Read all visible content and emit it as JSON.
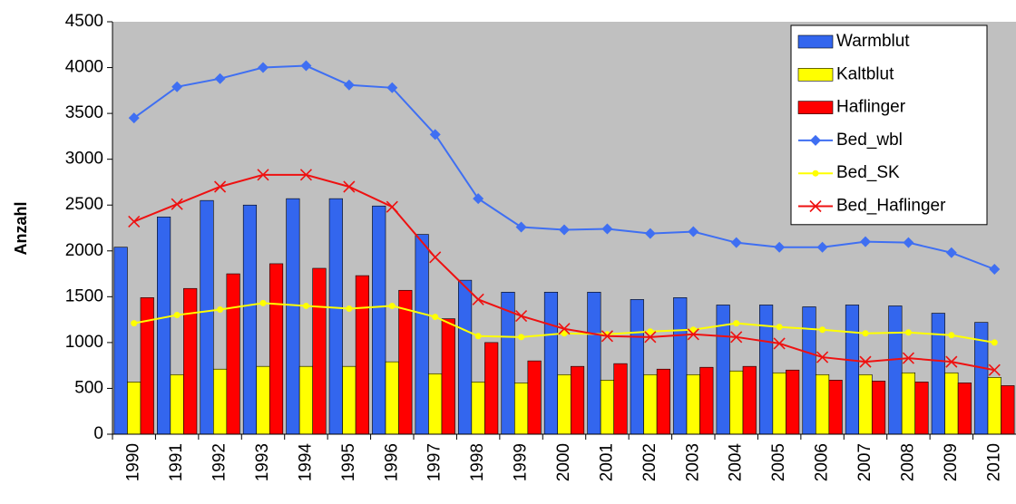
{
  "chart_data": {
    "type": "bar-line",
    "y_label": "Anzahl",
    "categories": [
      "1990",
      "1991",
      "1992",
      "1993",
      "1994",
      "1995",
      "1996",
      "1997",
      "1998",
      "1999",
      "2000",
      "2001",
      "2002",
      "2003",
      "2004",
      "2005",
      "2006",
      "2007",
      "2008",
      "2009",
      "2010"
    ],
    "series": [
      {
        "name": "Warmblut",
        "type": "bar",
        "color": "#3366ee",
        "values": [
          2040,
          2370,
          2550,
          2500,
          2570,
          2570,
          2490,
          2180,
          1680,
          1550,
          1550,
          1550,
          1470,
          1490,
          1410,
          1410,
          1390,
          1410,
          1400,
          1320,
          1220
        ]
      },
      {
        "name": "Kaltblut",
        "type": "bar",
        "color": "#ffff00",
        "values": [
          570,
          650,
          710,
          740,
          740,
          740,
          790,
          660,
          570,
          560,
          650,
          590,
          650,
          650,
          690,
          670,
          650,
          650,
          670,
          670,
          620
        ]
      },
      {
        "name": "Haflinger",
        "type": "bar",
        "color": "#ff0000",
        "values": [
          1490,
          1590,
          1750,
          1860,
          1810,
          1730,
          1570,
          1260,
          1000,
          800,
          740,
          770,
          710,
          730,
          740,
          700,
          590,
          580,
          570,
          560,
          530
        ]
      },
      {
        "name": "Bed_wbl",
        "type": "line",
        "marker": "diamond",
        "color": "#3f6ff2",
        "values": [
          3450,
          3790,
          3880,
          4000,
          4020,
          3810,
          3780,
          3270,
          2570,
          2260,
          2230,
          2240,
          2190,
          2210,
          2090,
          2040,
          2040,
          2100,
          2090,
          1980,
          1800
        ]
      },
      {
        "name": "Bed_SK",
        "type": "line",
        "marker": "circle",
        "color": "#ffff00",
        "values": [
          1210,
          1300,
          1360,
          1430,
          1400,
          1370,
          1400,
          1280,
          1070,
          1060,
          1100,
          1090,
          1120,
          1140,
          1210,
          1170,
          1140,
          1100,
          1110,
          1080,
          1000
        ]
      },
      {
        "name": "Bed_Haflinger",
        "type": "line",
        "marker": "x",
        "color": "#ee1111",
        "values": [
          2320,
          2510,
          2700,
          2830,
          2830,
          2700,
          2480,
          1930,
          1470,
          1290,
          1150,
          1070,
          1060,
          1090,
          1060,
          990,
          840,
          790,
          830,
          790,
          700
        ]
      }
    ],
    "ylim": [
      0,
      4500
    ],
    "yticks": [
      0,
      500,
      1000,
      1500,
      2000,
      2500,
      3000,
      3500,
      4000,
      4500
    ],
    "legend": "top-right",
    "plot_background": "#c0c0c0"
  }
}
